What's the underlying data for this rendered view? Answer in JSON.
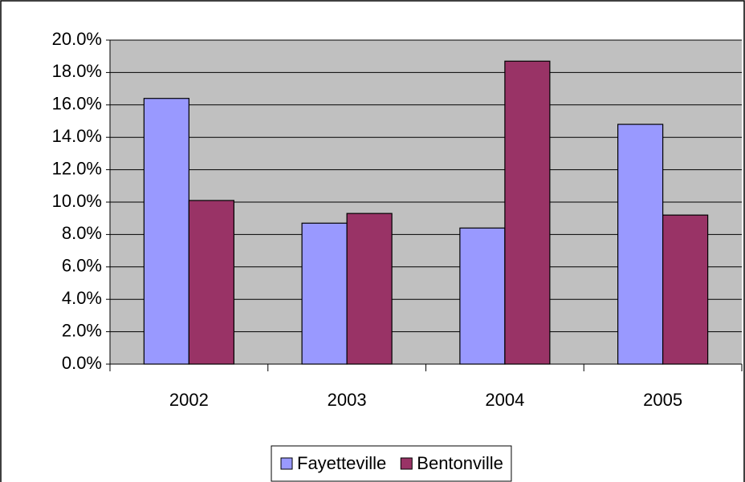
{
  "chart_data": {
    "type": "bar",
    "categories": [
      "2002",
      "2003",
      "2004",
      "2005"
    ],
    "series": [
      {
        "name": "Fayetteville",
        "color": "#9999ff",
        "values": [
          16.4,
          8.7,
          8.4,
          14.8
        ]
      },
      {
        "name": "Bentonville",
        "color": "#993366",
        "values": [
          10.1,
          9.3,
          18.7,
          9.2
        ]
      }
    ],
    "ylim": [
      0,
      20
    ],
    "yticks": [
      {
        "value": 0,
        "label": "0.0%"
      },
      {
        "value": 2,
        "label": "2.0%"
      },
      {
        "value": 4,
        "label": "4.0%"
      },
      {
        "value": 6,
        "label": "6.0%"
      },
      {
        "value": 8,
        "label": "8.0%"
      },
      {
        "value": 10,
        "label": "10.0%"
      },
      {
        "value": 12,
        "label": "12.0%"
      },
      {
        "value": 14,
        "label": "14.0%"
      },
      {
        "value": 16,
        "label": "16.0%"
      },
      {
        "value": 18,
        "label": "18.0%"
      },
      {
        "value": 20,
        "label": "20.0%"
      }
    ],
    "grid": true,
    "plot_background": "#c0c0c0",
    "legend": "bottom"
  }
}
